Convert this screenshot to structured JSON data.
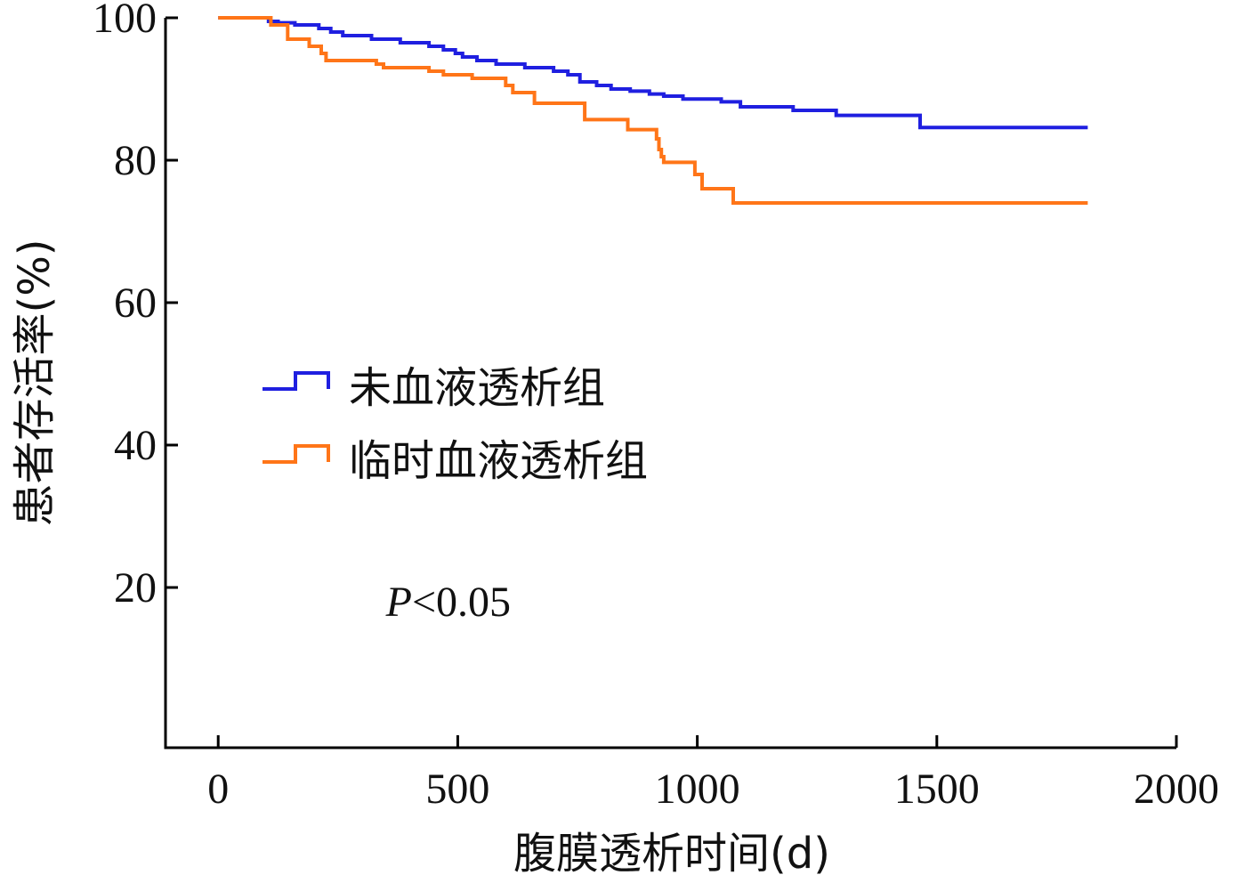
{
  "chart_data": {
    "type": "line",
    "title": "",
    "xlabel": "腹膜透析时间(d)",
    "ylabel": "患者存活率(%)",
    "xlim": [
      -110,
      2000
    ],
    "ylim": [
      -2.5,
      100
    ],
    "xticks": [
      0,
      500,
      1000,
      1500,
      2000
    ],
    "yticks": [
      20,
      40,
      60,
      80,
      100
    ],
    "grid": false,
    "legend": "center-left",
    "annotation": {
      "italic": "P",
      "rest": "<0.05",
      "x": 350,
      "y": 16
    },
    "series": [
      {
        "name": "未血液透析组",
        "color": "#1f1fe0",
        "step": true,
        "points": [
          [
            0,
            100
          ],
          [
            95,
            100
          ],
          [
            105,
            99.5
          ],
          [
            125,
            99.3
          ],
          [
            160,
            99
          ],
          [
            210,
            98.5
          ],
          [
            235,
            98
          ],
          [
            260,
            97.5
          ],
          [
            320,
            97
          ],
          [
            380,
            96.5
          ],
          [
            440,
            96
          ],
          [
            470,
            95.5
          ],
          [
            495,
            95
          ],
          [
            510,
            94.5
          ],
          [
            540,
            94
          ],
          [
            580,
            93.5
          ],
          [
            640,
            93
          ],
          [
            700,
            92.5
          ],
          [
            730,
            92
          ],
          [
            755,
            91
          ],
          [
            790,
            90.5
          ],
          [
            820,
            90
          ],
          [
            860,
            89.7
          ],
          [
            900,
            89.3
          ],
          [
            930,
            89
          ],
          [
            970,
            88.6
          ],
          [
            1050,
            88.2
          ],
          [
            1090,
            87.5
          ],
          [
            1200,
            87
          ],
          [
            1290,
            86.3
          ],
          [
            1465,
            84.6
          ],
          [
            1815,
            84.6
          ]
        ]
      },
      {
        "name": "临时血液透析组",
        "color": "#ff7518",
        "step": true,
        "points": [
          [
            0,
            100
          ],
          [
            95,
            100
          ],
          [
            110,
            99
          ],
          [
            145,
            97
          ],
          [
            190,
            96
          ],
          [
            215,
            95
          ],
          [
            225,
            94
          ],
          [
            330,
            93.5
          ],
          [
            345,
            93
          ],
          [
            440,
            92.5
          ],
          [
            470,
            92
          ],
          [
            530,
            91.5
          ],
          [
            600,
            90.5
          ],
          [
            615,
            89.5
          ],
          [
            660,
            88
          ],
          [
            765,
            85.7
          ],
          [
            855,
            84.3
          ],
          [
            915,
            83
          ],
          [
            920,
            81.5
          ],
          [
            925,
            80.5
          ],
          [
            930,
            79.7
          ],
          [
            995,
            78
          ],
          [
            1010,
            76
          ],
          [
            1075,
            74
          ],
          [
            1815,
            74
          ]
        ]
      }
    ]
  }
}
